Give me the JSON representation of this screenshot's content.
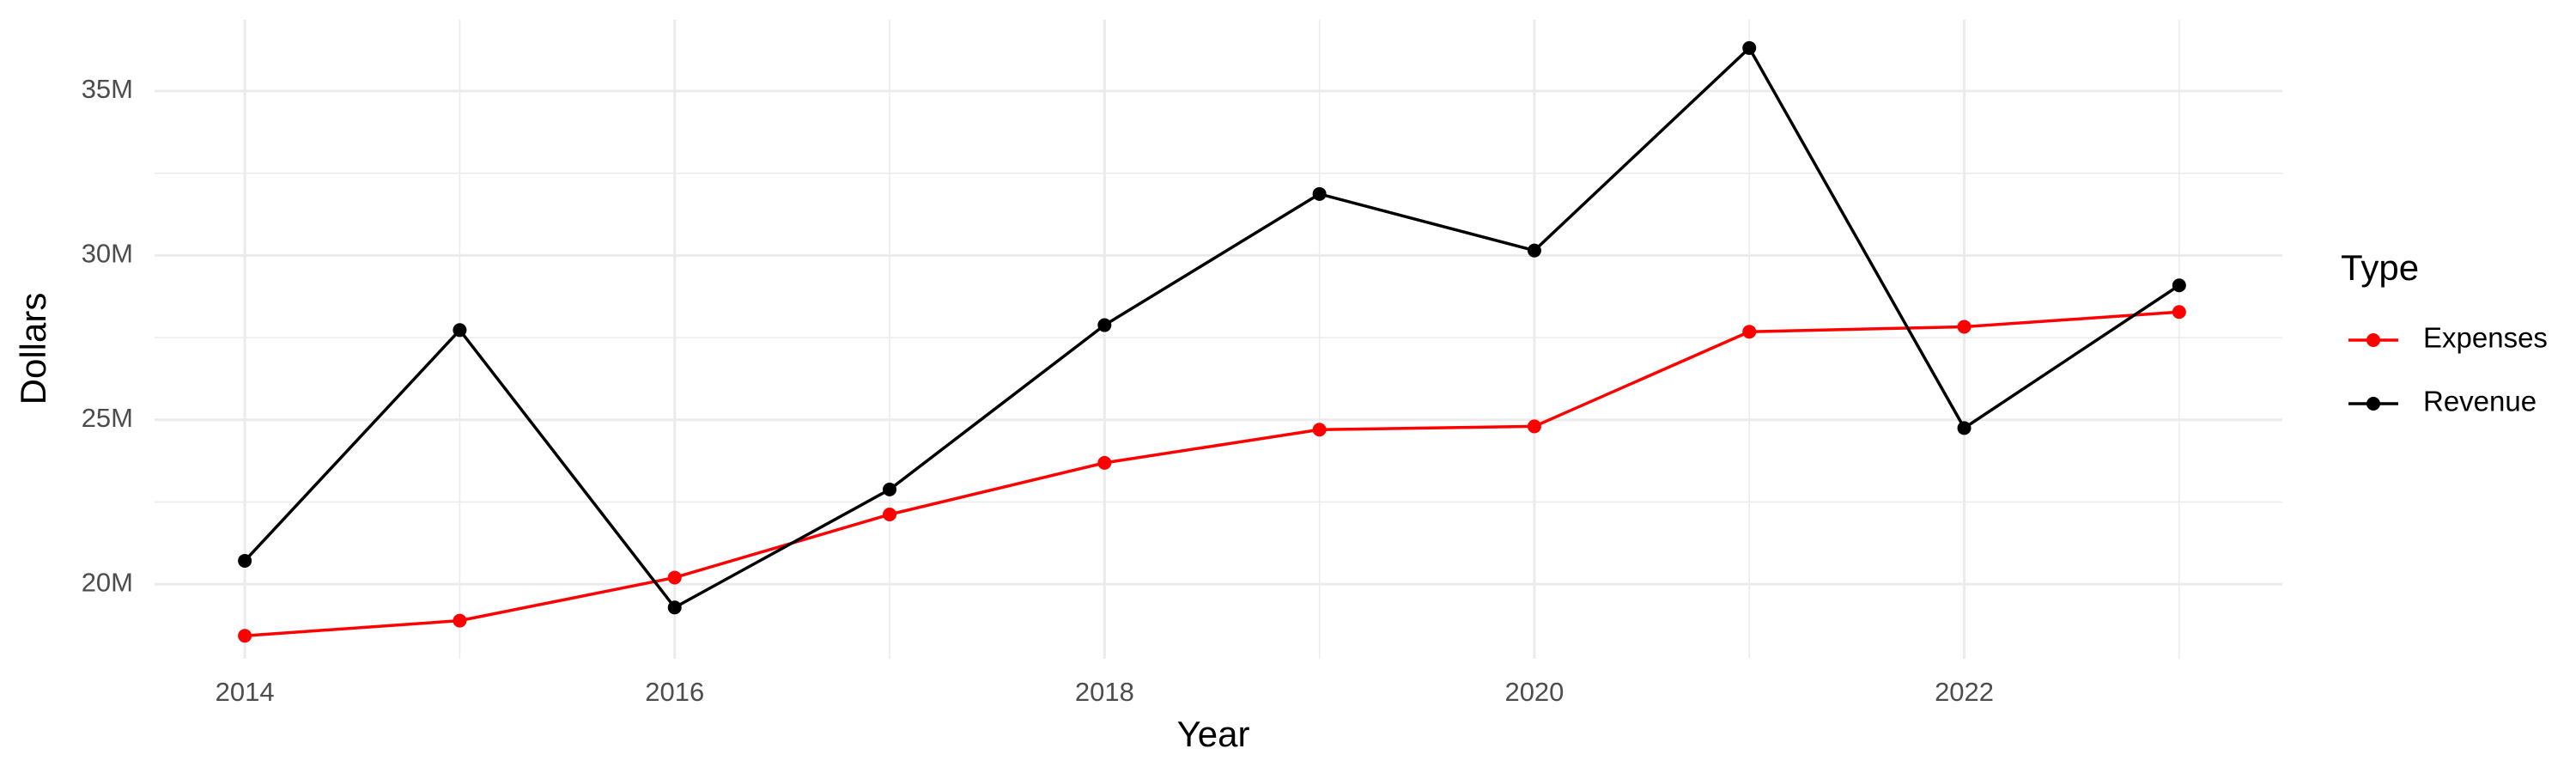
{
  "chart_data": {
    "type": "line",
    "x_label": "Year",
    "y_label": "Dollars",
    "legend_title": "Type",
    "legend_position": "right",
    "grid": true,
    "x": [
      2014,
      2015,
      2016,
      2017,
      2018,
      2019,
      2020,
      2021,
      2022,
      2023
    ],
    "series": [
      {
        "name": "Expenses",
        "color": "#ff0000",
        "values": [
          18430000,
          18890000,
          20200000,
          22120000,
          23690000,
          24700000,
          24800000,
          27680000,
          27830000,
          28280000
        ]
      },
      {
        "name": "Revenue",
        "color": "#000000",
        "values": [
          20710000,
          27730000,
          19290000,
          22880000,
          27880000,
          31870000,
          30150000,
          36310000,
          24750000,
          29090000
        ]
      }
    ],
    "xlim": [
      2013.58,
      2023.48
    ],
    "xticks": [
      2014,
      2016,
      2018,
      2020,
      2022
    ],
    "x_minor_grid": [
      2015,
      2017,
      2019,
      2021,
      2023
    ],
    "ylim": [
      17730000,
      37170000
    ],
    "yticks": [
      {
        "value": 20000000,
        "label": "20M"
      },
      {
        "value": 25000000,
        "label": "25M"
      },
      {
        "value": 30000000,
        "label": "30M"
      },
      {
        "value": 35000000,
        "label": "35M"
      }
    ],
    "y_minor_grid": [
      22500000,
      27500000,
      32500000
    ]
  }
}
